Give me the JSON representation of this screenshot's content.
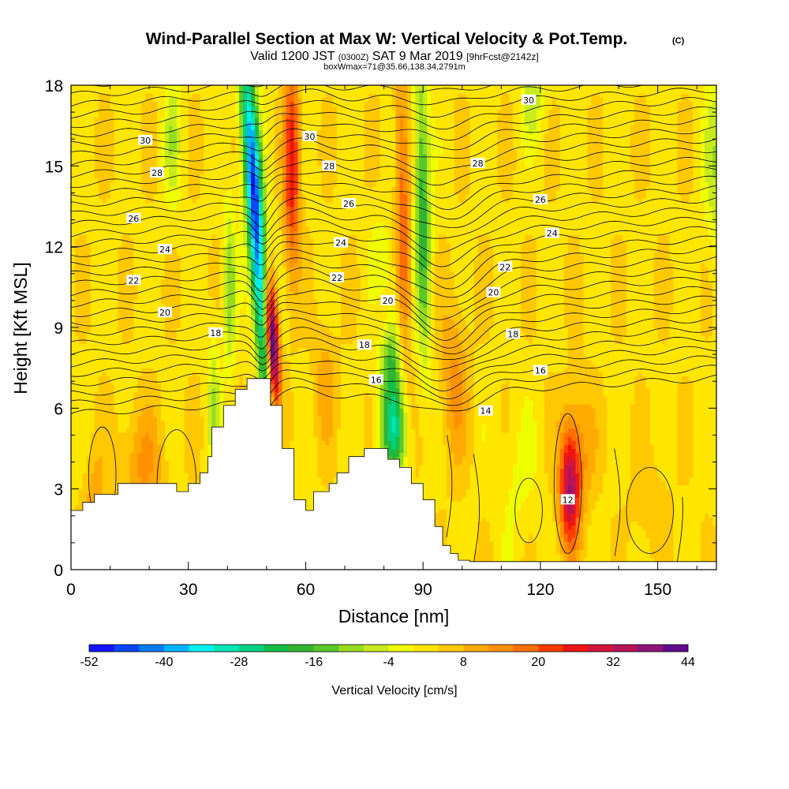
{
  "chart_data": {
    "type": "heatmap",
    "title": "Wind-Parallel Section at Max W: Vertical Velocity & Pot.Temp.",
    "copyright_mark": "(C)",
    "subtitle_main": "Valid 1200 JST",
    "subtitle_utc": "(0300Z)",
    "subtitle_date": "SAT 9 Mar 2019",
    "subtitle_fcst": "[9hrFcst@2142z]",
    "subtitle_box": "boxWmax=71@35.66,138.34,2791m",
    "xlabel": "Distance [nm]",
    "ylabel": "Height [Kft MSL]",
    "x_ticks": [
      0,
      30,
      60,
      90,
      120,
      150
    ],
    "y_ticks": [
      0,
      3,
      6,
      9,
      12,
      15,
      18
    ],
    "xlim": [
      0,
      165
    ],
    "ylim": [
      0,
      18
    ],
    "colorbar": {
      "label": "Vertical Velocity [cm/s]",
      "tick_labels": [
        "-52",
        "-40",
        "-28",
        "-16",
        "-4",
        "8",
        "20",
        "32",
        "44"
      ],
      "levels": [
        -52,
        -48,
        -44,
        -40,
        -36,
        -32,
        -28,
        -24,
        -20,
        -16,
        -12,
        -8,
        -4,
        0,
        4,
        8,
        12,
        16,
        20,
        24,
        28,
        32,
        36,
        40,
        44
      ],
      "colors": [
        "#1414ff",
        "#0a46ff",
        "#007dff",
        "#00b4ff",
        "#00f0f0",
        "#00e6b4",
        "#00d282",
        "#14be46",
        "#32b432",
        "#5ac828",
        "#96dc1e",
        "#c8eb1e",
        "#f0ff00",
        "#ffe600",
        "#ffc800",
        "#ffaa00",
        "#ff9100",
        "#ff6e00",
        "#ff3c00",
        "#f01414",
        "#d2143c",
        "#b4145a",
        "#8c1478",
        "#640a8c"
      ]
    },
    "isentrope_labels": [
      {
        "text": "30",
        "x": 19,
        "y": 15.95
      },
      {
        "text": "30",
        "x": 61,
        "y": 16.1
      },
      {
        "text": "30",
        "x": 117,
        "y": 17.45
      },
      {
        "text": "28",
        "x": 22,
        "y": 14.75
      },
      {
        "text": "28",
        "x": 66,
        "y": 15.0
      },
      {
        "text": "28",
        "x": 104,
        "y": 15.1
      },
      {
        "text": "26",
        "x": 16,
        "y": 13.05
      },
      {
        "text": "26",
        "x": 71,
        "y": 13.6
      },
      {
        "text": "26",
        "x": 120,
        "y": 13.75
      },
      {
        "text": "24",
        "x": 24,
        "y": 11.9
      },
      {
        "text": "24",
        "x": 69,
        "y": 12.15
      },
      {
        "text": "24",
        "x": 123,
        "y": 12.5
      },
      {
        "text": "22",
        "x": 16,
        "y": 10.75
      },
      {
        "text": "22",
        "x": 68,
        "y": 10.85
      },
      {
        "text": "22",
        "x": 111,
        "y": 11.25
      },
      {
        "text": "20",
        "x": 24,
        "y": 9.55
      },
      {
        "text": "20",
        "x": 81,
        "y": 10.0
      },
      {
        "text": "20",
        "x": 108,
        "y": 10.3
      },
      {
        "text": "18",
        "x": 37,
        "y": 8.8
      },
      {
        "text": "18",
        "x": 75,
        "y": 8.35
      },
      {
        "text": "18",
        "x": 113,
        "y": 8.75
      },
      {
        "text": "16",
        "x": 78,
        "y": 7.05
      },
      {
        "text": "16",
        "x": 120,
        "y": 7.4
      },
      {
        "text": "14",
        "x": 106,
        "y": 5.9
      },
      {
        "text": "12",
        "x": 127,
        "y": 2.6
      }
    ]
  }
}
